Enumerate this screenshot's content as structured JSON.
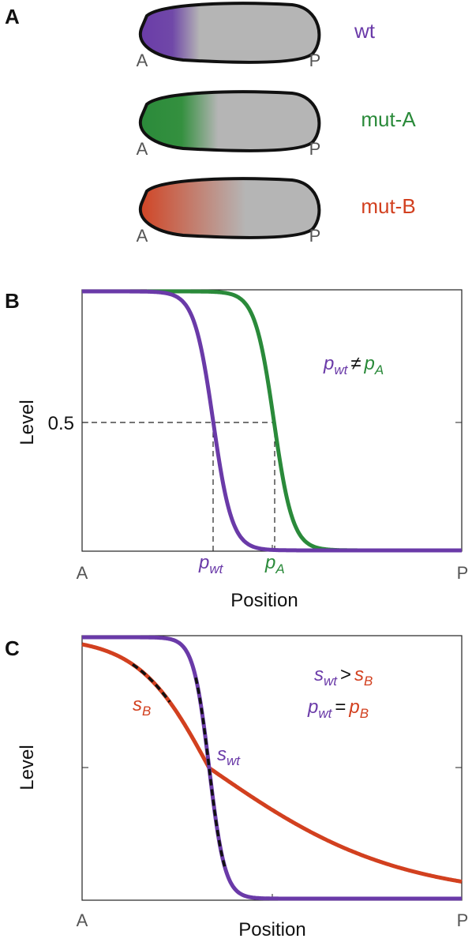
{
  "panels": {
    "a": {
      "label": "A",
      "embryos": [
        {
          "name": "wt",
          "anterior": "A",
          "posterior": "P"
        },
        {
          "name": "mut-A",
          "anterior": "A",
          "posterior": "P"
        },
        {
          "name": "mut-B",
          "anterior": "A",
          "posterior": "P"
        }
      ]
    },
    "b": {
      "label": "B",
      "y_axis_label": "Level",
      "y_tick": "0.5",
      "x_axis_label": "Position",
      "x_start": "A",
      "x_end": "P",
      "markers": [
        {
          "symbol": "p",
          "subscript": "wt"
        },
        {
          "symbol": "p",
          "subscript": "A"
        }
      ],
      "annotation": {
        "left": {
          "symbol": "p",
          "subscript": "wt"
        },
        "relation": "≠",
        "right": {
          "symbol": "p",
          "subscript": "A"
        }
      }
    },
    "c": {
      "label": "C",
      "y_axis_label": "Level",
      "x_axis_label": "Position",
      "x_start": "A",
      "x_end": "P",
      "markers": [
        {
          "symbol": "s",
          "subscript": "B"
        },
        {
          "symbol": "s",
          "subscript": "wt"
        }
      ],
      "annotations": [
        {
          "left": {
            "symbol": "s",
            "subscript": "wt"
          },
          "relation": ">",
          "right": {
            "symbol": "s",
            "subscript": "B"
          }
        },
        {
          "left": {
            "symbol": "p",
            "subscript": "wt"
          },
          "relation": "=",
          "right": {
            "symbol": "p",
            "subscript": "B"
          }
        }
      ]
    }
  }
}
